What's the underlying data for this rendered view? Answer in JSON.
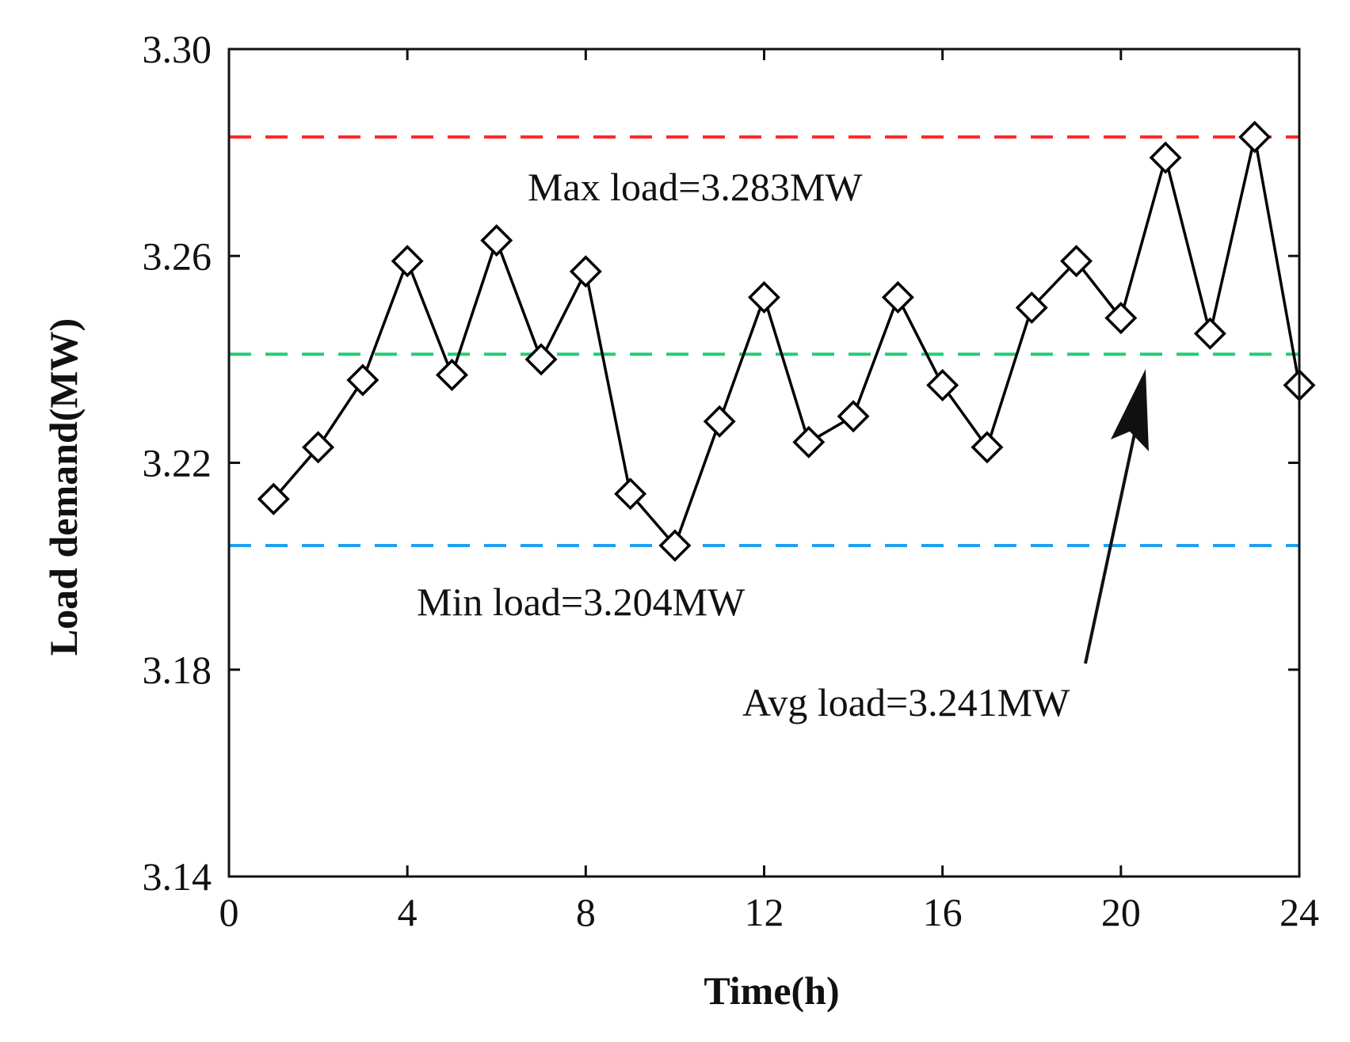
{
  "chart_data": {
    "type": "line",
    "title": "",
    "xlabel": "Time(h)",
    "ylabel": "Load demand(MW)",
    "xlim": [
      0,
      24
    ],
    "ylim": [
      3.14,
      3.3
    ],
    "xticks": [
      0,
      4,
      8,
      12,
      16,
      20,
      24
    ],
    "yticks": [
      3.14,
      3.18,
      3.22,
      3.26,
      3.3
    ],
    "ytick_labels": [
      "3.14",
      "3.18",
      "3.22",
      "3.26",
      "3.30"
    ],
    "grid": false,
    "series": [
      {
        "name": "Load demand",
        "marker": "diamond",
        "color": "#000000",
        "x": [
          1,
          2,
          3,
          4,
          5,
          6,
          7,
          8,
          9,
          10,
          11,
          12,
          13,
          14,
          15,
          16,
          17,
          18,
          19,
          20,
          21,
          22,
          23,
          24
        ],
        "values": [
          3.213,
          3.223,
          3.236,
          3.259,
          3.237,
          3.263,
          3.24,
          3.257,
          3.214,
          3.204,
          3.228,
          3.252,
          3.224,
          3.229,
          3.252,
          3.235,
          3.223,
          3.25,
          3.259,
          3.248,
          3.279,
          3.245,
          3.283,
          3.235
        ]
      }
    ],
    "reference_lines": [
      {
        "name": "max",
        "value": 3.283,
        "color": "#ff2a2a",
        "label": "Max load=3.283MW"
      },
      {
        "name": "avg",
        "value": 3.241,
        "color": "#22cc77",
        "label": "Avg load=3.241MW"
      },
      {
        "name": "min",
        "value": 3.204,
        "color": "#1ea0f0",
        "label": "Min load=3.204MW"
      }
    ]
  }
}
